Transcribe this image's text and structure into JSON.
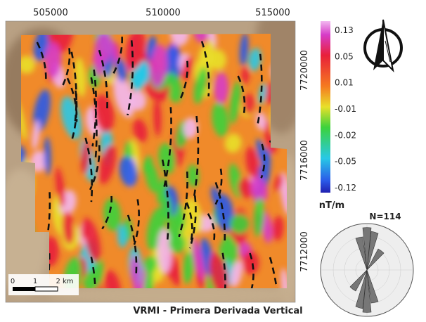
{
  "map": {
    "title": "VRMI -  Primera Derivada Vertical",
    "x_ticks": [
      "505000",
      "510000",
      "515000"
    ],
    "y_ticks": [
      "7720000",
      "7716000",
      "7712000"
    ],
    "colorbar": {
      "labels": [
        "0.13",
        "0.05",
        "0.01",
        "-0.01",
        "-0.02",
        "-0.05",
        "-0.12"
      ],
      "unit": "nT/m"
    },
    "scale_bar": {
      "labels": [
        "0",
        "1",
        "2 km"
      ]
    },
    "rose": {
      "label": "N=114"
    }
  }
}
